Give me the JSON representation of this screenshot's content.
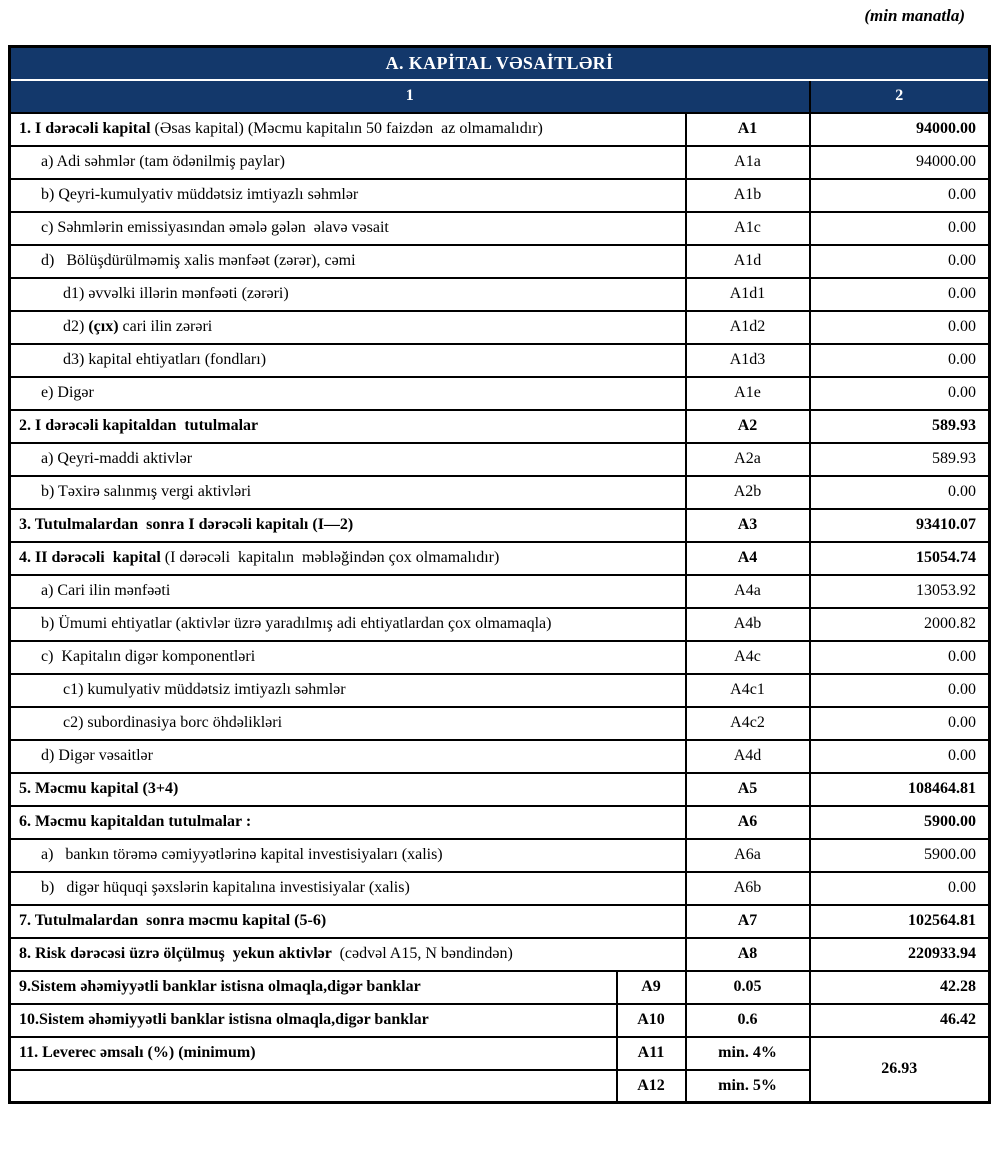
{
  "page": {
    "unit_note": "(min manatla)"
  },
  "colors": {
    "header_bg": "#13386B",
    "header_text": "#FFFFFF",
    "border": "#000000"
  },
  "table": {
    "title": "A. KAPİTAL VƏSAİTLƏRİ",
    "col_headers": [
      "1",
      "2"
    ],
    "rows": [
      {
        "bold": "1. I dərəcəli kapital ",
        "rest": "(Əsas kapital) (Məcmu kapitalın 50 faizdən  az olmamalıdır)",
        "code": "A1",
        "value": "94000.00"
      },
      {
        "rest": "a) Adi səhmlər (tam ödənilmiş paylar)",
        "code": "A1a",
        "value": "94000.00"
      },
      {
        "rest": "b) Qeyri-kumulyativ müddətsiz imtiyazlı səhmlər",
        "code": "A1b",
        "value": "0.00"
      },
      {
        "rest": "c) Səhmlərin emissiyasından əmələ gələn  əlavə vəsait",
        "code": "A1c",
        "value": "0.00"
      },
      {
        "rest": "d)   Bölüşdürülməmiş xalis mənfəət (zərər), cəmi",
        "code": "A1d",
        "value": "0.00"
      },
      {
        "rest": "d1) əvvəlki illərin mənfəəti (zərəri)",
        "code": "A1d1",
        "value": "0.00"
      },
      {
        "pre": "d2) ",
        "bold": "(çıx)",
        "rest": " cari ilin zərəri",
        "code": "A1d2",
        "value": "0.00"
      },
      {
        "rest": "d3) kapital ehtiyatları (fondları)",
        "code": "A1d3",
        "value": "0.00"
      },
      {
        "rest": "e) Digər",
        "code": "A1e",
        "value": "0.00"
      },
      {
        "bold": "2. I dərəcəli kapitaldan  tutulmalar",
        "code": "A2",
        "value": "589.93"
      },
      {
        "rest": "a) Qeyri-maddi aktivlər",
        "code": "A2a",
        "value": "589.93"
      },
      {
        "rest": "b) Təxirə salınmış vergi aktivləri",
        "code": "A2b",
        "value": "0.00"
      },
      {
        "bold": "3. Tutulmalardan  sonra I dərəcəli kapitalı (I—2)",
        "code": "A3",
        "value": "93410.07"
      },
      {
        "bold": "4. II dərəcəli  kapital ",
        "rest": "(I dərəcəli  kapitalın  məbləğindən çox olmamalıdır)",
        "code": "A4",
        "value": "15054.74"
      },
      {
        "rest": "a) Cari ilin mənfəəti",
        "code": "A4a",
        "value": "13053.92"
      },
      {
        "rest": "b) Ümumi ehtiyatlar (aktivlər üzrə yaradılmış adi ehtiyatlardan çox olmamaqla)",
        "code": "A4b",
        "value": "2000.82"
      },
      {
        "rest": "c)  Kapitalın digər komponentləri",
        "code": "A4c",
        "value": "0.00"
      },
      {
        "rest": "c1) kumulyativ müddətsiz imtiyazlı səhmlər",
        "code": "A4c1",
        "value": "0.00"
      },
      {
        "rest": "c2) subordinasiya borc öhdəlikləri",
        "code": "A4c2",
        "value": "0.00"
      },
      {
        "rest": "d) Digər vəsaitlər",
        "code": "A4d",
        "value": "0.00"
      },
      {
        "bold": "5. Məcmu kapital (3+4)",
        "code": "A5",
        "value": "108464.81"
      },
      {
        "bold": "6. Məcmu kapitaldan tutulmalar :",
        "code": "A6",
        "value": "5900.00"
      },
      {
        "rest": "a)   bankın törəmə cəmiyyətlərinə kapital investisiyaları (xalis)",
        "code": "A6a",
        "value": "5900.00"
      },
      {
        "rest": "b)   digər hüquqi şəxslərin kapitalına investisiyalar (xalis)",
        "code": "A6b",
        "value": "0.00"
      },
      {
        "bold": "7. Tutulmalardan  sonra məcmu kapital (5-6)",
        "code": "A7",
        "value": "102564.81"
      },
      {
        "bold": "8. Risk dərəcəsi üzrə ölçülmuş  yekun aktivlər ",
        "rest": " (cədvəl A15, N bəndindən)",
        "code": "A8",
        "value": "220933.94"
      }
    ],
    "ratio_rows": [
      {
        "label": "9.Sistem əhəmiyyətli banklar istisna olmaqla,digər banklar",
        "code": "A9",
        "ratio": "0.05",
        "value": "42.28"
      },
      {
        "label": "10.Sistem əhəmiyyətli banklar istisna olmaqla,digər banklar",
        "code": "A10",
        "ratio": "0.6",
        "value": "46.42"
      },
      {
        "label": "11. Leverec əmsalı (%) (minimum)",
        "code": "A11",
        "ratio": "min. 4%"
      },
      {
        "label": "",
        "code": "A12",
        "ratio": "min. 5%"
      }
    ],
    "leverage_value": "26.93"
  }
}
